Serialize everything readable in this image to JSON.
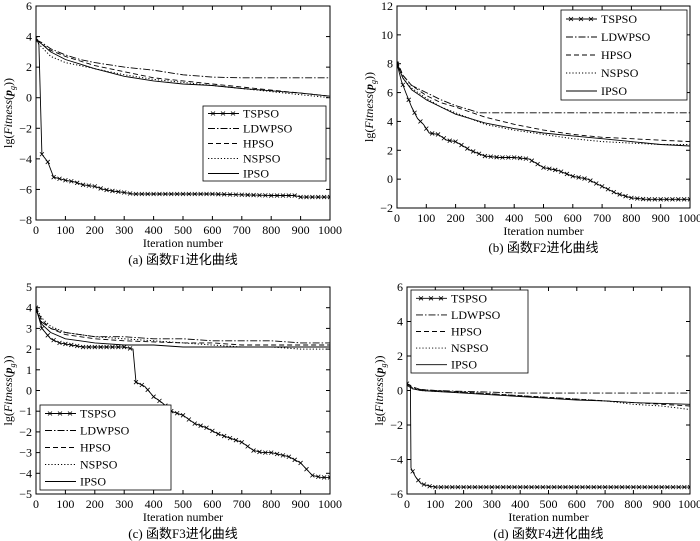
{
  "chart_data": [
    {
      "type": "line",
      "caption": "(a) 函数F1进化曲线",
      "xlabel": "Iteration number",
      "ylabel_prefix": "lg(",
      "ylabel_italic": "Fitness",
      "ylabel_bold": "p",
      "ylabel_sub": "g",
      "ylabel_suffix": "))",
      "xlim": [
        0,
        1000
      ],
      "ylim": [
        -8,
        6
      ],
      "xticks": [
        0,
        100,
        200,
        300,
        400,
        500,
        600,
        700,
        800,
        900,
        1000
      ],
      "yticks": [
        -8,
        -6,
        -4,
        -2,
        0,
        2,
        4,
        6
      ],
      "legend_position": "center-right",
      "series": [
        {
          "name": "TSPSO",
          "style": "solid-x",
          "x": [
            0,
            10,
            20,
            40,
            60,
            80,
            100,
            130,
            160,
            200,
            230,
            260,
            300,
            330,
            400,
            500,
            600,
            700,
            800,
            880,
            900,
            1000
          ],
          "y": [
            3.9,
            3.5,
            -3.7,
            -4.2,
            -5.2,
            -5.3,
            -5.4,
            -5.5,
            -5.7,
            -5.8,
            -6.0,
            -6.1,
            -6.2,
            -6.3,
            -6.3,
            -6.3,
            -6.3,
            -6.35,
            -6.4,
            -6.4,
            -6.5,
            -6.5
          ]
        },
        {
          "name": "LDWPSO",
          "style": "dashdot",
          "x": [
            0,
            20,
            50,
            100,
            150,
            200,
            300,
            400,
            500,
            600,
            700,
            800,
            900,
            1000
          ],
          "y": [
            3.8,
            3.6,
            3.2,
            2.8,
            2.5,
            2.3,
            2.0,
            1.8,
            1.5,
            1.35,
            1.3,
            1.3,
            1.3,
            1.3
          ]
        },
        {
          "name": "HPSO",
          "style": "dashed",
          "x": [
            0,
            20,
            50,
            100,
            150,
            200,
            300,
            400,
            500,
            600,
            700,
            800,
            900,
            1000
          ],
          "y": [
            3.8,
            3.5,
            3.1,
            2.7,
            2.4,
            2.1,
            1.7,
            1.3,
            1.1,
            0.9,
            0.7,
            0.5,
            0.3,
            0.1
          ]
        },
        {
          "name": "NSPSO",
          "style": "dotted",
          "x": [
            0,
            20,
            50,
            100,
            150,
            200,
            300,
            400,
            500,
            600,
            700,
            800,
            900,
            1000
          ],
          "y": [
            3.7,
            3.3,
            2.7,
            2.3,
            2.1,
            1.9,
            1.5,
            1.2,
            1.0,
            0.8,
            0.6,
            0.4,
            0.2,
            0.0
          ]
        },
        {
          "name": "IPSO",
          "style": "solid",
          "x": [
            0,
            20,
            50,
            100,
            150,
            200,
            300,
            400,
            500,
            600,
            700,
            800,
            900,
            1000
          ],
          "y": [
            3.8,
            3.5,
            3.0,
            2.5,
            2.2,
            1.9,
            1.4,
            1.1,
            0.9,
            0.8,
            0.6,
            0.45,
            0.3,
            0.1
          ]
        }
      ]
    },
    {
      "type": "line",
      "caption": "(b) 函数F2进化曲线",
      "xlabel": "Iteration number",
      "ylabel_prefix": "lg(",
      "ylabel_italic": "Fitness",
      "ylabel_bold": "p",
      "ylabel_sub": "g",
      "ylabel_suffix": "))",
      "xlim": [
        0,
        1000
      ],
      "ylim": [
        -2,
        12
      ],
      "xticks": [
        0,
        100,
        200,
        300,
        400,
        500,
        600,
        700,
        800,
        900,
        1000
      ],
      "yticks": [
        -2,
        0,
        2,
        4,
        6,
        8,
        10,
        12
      ],
      "legend_position": "top-right",
      "series": [
        {
          "name": "TSPSO",
          "style": "solid-x",
          "x": [
            0,
            15,
            30,
            50,
            70,
            90,
            110,
            140,
            170,
            200,
            250,
            300,
            350,
            400,
            450,
            500,
            550,
            600,
            650,
            700,
            750,
            800,
            850,
            900,
            950,
            1000
          ],
          "y": [
            8.0,
            6.8,
            6.0,
            5.0,
            4.2,
            3.8,
            3.2,
            3.1,
            2.7,
            2.6,
            2.0,
            1.6,
            1.5,
            1.5,
            1.4,
            0.8,
            0.6,
            0.2,
            0.0,
            -0.5,
            -1.0,
            -1.3,
            -1.4,
            -1.4,
            -1.4,
            -1.4
          ]
        },
        {
          "name": "LDWPSO",
          "style": "dashdot",
          "x": [
            0,
            20,
            50,
            100,
            150,
            200,
            250,
            280,
            400,
            600,
            800,
            1000
          ],
          "y": [
            8.0,
            7.2,
            6.5,
            6.0,
            5.5,
            5.1,
            4.8,
            4.6,
            4.6,
            4.6,
            4.6,
            4.6
          ]
        },
        {
          "name": "HPSO",
          "style": "dashed",
          "x": [
            0,
            20,
            50,
            100,
            150,
            200,
            300,
            400,
            500,
            600,
            700,
            800,
            900,
            1000
          ],
          "y": [
            8.2,
            7.2,
            6.5,
            5.8,
            5.3,
            5.0,
            4.3,
            3.8,
            3.4,
            3.1,
            2.9,
            2.8,
            2.7,
            2.6
          ]
        },
        {
          "name": "NSPSO",
          "style": "dotted",
          "x": [
            0,
            20,
            50,
            100,
            150,
            200,
            300,
            400,
            500,
            600,
            700,
            800,
            900,
            1000
          ],
          "y": [
            8.0,
            7.0,
            6.3,
            5.6,
            5.0,
            4.6,
            3.8,
            3.4,
            3.1,
            2.8,
            2.6,
            2.5,
            2.4,
            2.4
          ]
        },
        {
          "name": "IPSO",
          "style": "solid",
          "x": [
            0,
            20,
            50,
            100,
            150,
            200,
            300,
            400,
            500,
            600,
            700,
            800,
            900,
            1000
          ],
          "y": [
            8.0,
            7.0,
            6.2,
            5.5,
            5.0,
            4.5,
            3.9,
            3.5,
            3.2,
            3.0,
            2.8,
            2.6,
            2.4,
            2.3
          ]
        }
      ]
    },
    {
      "type": "line",
      "caption": "(c) 函数F3进化曲线",
      "xlabel": "Iteration number",
      "ylabel_prefix": "lg(",
      "ylabel_italic": "Fitness",
      "ylabel_bold": "p",
      "ylabel_sub": "g",
      "ylabel_suffix": "))",
      "xlim": [
        0,
        1000
      ],
      "ylim": [
        -5,
        5
      ],
      "xticks": [
        0,
        100,
        200,
        300,
        400,
        500,
        600,
        700,
        800,
        900,
        1000
      ],
      "yticks": [
        -5,
        -4,
        -3,
        -2,
        -1,
        0,
        1,
        2,
        3,
        4,
        5
      ],
      "legend_position": "bottom-left",
      "series": [
        {
          "name": "TSPSO",
          "style": "solid-x",
          "x": [
            0,
            20,
            50,
            80,
            120,
            160,
            200,
            250,
            300,
            330,
            340,
            370,
            400,
            430,
            460,
            500,
            540,
            580,
            620,
            660,
            700,
            740,
            770,
            800,
            860,
            900,
            940,
            970,
            1000
          ],
          "y": [
            4.0,
            3.0,
            2.5,
            2.3,
            2.2,
            2.1,
            2.1,
            2.1,
            2.1,
            2.0,
            0.4,
            0.2,
            -0.3,
            -0.6,
            -1.0,
            -1.2,
            -1.6,
            -1.8,
            -2.1,
            -2.3,
            -2.5,
            -2.9,
            -3.0,
            -3.0,
            -3.2,
            -3.5,
            -4.1,
            -4.2,
            -4.2
          ]
        },
        {
          "name": "LDWPSO",
          "style": "dashdot",
          "x": [
            0,
            20,
            50,
            100,
            150,
            200,
            300,
            400,
            500,
            600,
            700,
            800,
            900,
            1000
          ],
          "y": [
            3.9,
            3.3,
            3.0,
            2.8,
            2.7,
            2.6,
            2.6,
            2.5,
            2.5,
            2.4,
            2.4,
            2.4,
            2.3,
            2.3
          ]
        },
        {
          "name": "HPSO",
          "style": "dashed",
          "x": [
            0,
            20,
            50,
            100,
            150,
            200,
            300,
            400,
            500,
            600,
            700,
            800,
            900,
            1000
          ],
          "y": [
            4.0,
            3.4,
            3.0,
            2.7,
            2.6,
            2.5,
            2.4,
            2.35,
            2.3,
            2.3,
            2.2,
            2.2,
            2.2,
            2.2
          ]
        },
        {
          "name": "NSPSO",
          "style": "dotted",
          "x": [
            0,
            20,
            50,
            100,
            150,
            200,
            300,
            400,
            500,
            600,
            700,
            800,
            900,
            1000
          ],
          "y": [
            4.0,
            3.5,
            3.1,
            2.8,
            2.7,
            2.6,
            2.5,
            2.4,
            2.3,
            2.2,
            2.1,
            2.1,
            2.0,
            2.0
          ]
        },
        {
          "name": "IPSO",
          "style": "solid",
          "x": [
            0,
            20,
            50,
            100,
            150,
            200,
            300,
            400,
            500,
            600,
            700,
            800,
            900,
            1000
          ],
          "y": [
            3.9,
            3.2,
            2.8,
            2.5,
            2.4,
            2.3,
            2.2,
            2.2,
            2.1,
            2.1,
            2.1,
            2.1,
            2.1,
            2.1
          ]
        }
      ]
    },
    {
      "type": "line",
      "caption": "(d) 函数F4进化曲线",
      "xlabel": "Iteration number",
      "ylabel_prefix": "lg(",
      "ylabel_italic": "Fitness",
      "ylabel_bold": "p",
      "ylabel_sub": "g",
      "ylabel_suffix": "))",
      "xlim": [
        0,
        1000
      ],
      "ylim": [
        -6,
        6
      ],
      "xticks": [
        0,
        100,
        200,
        300,
        400,
        500,
        600,
        700,
        800,
        900,
        1000
      ],
      "yticks": [
        -6,
        -4,
        -2,
        0,
        2,
        4,
        6
      ],
      "legend_position": "top-left",
      "series": [
        {
          "name": "TSPSO",
          "style": "solid-x",
          "x": [
            0,
            12,
            14,
            30,
            50,
            80,
            100,
            150,
            200,
            300,
            400,
            500,
            600,
            700,
            800,
            900,
            1000
          ],
          "y": [
            0.4,
            0.3,
            -4.5,
            -5.0,
            -5.4,
            -5.55,
            -5.6,
            -5.6,
            -5.6,
            -5.6,
            -5.6,
            -5.6,
            -5.6,
            -5.6,
            -5.6,
            -5.6,
            -5.6
          ]
        },
        {
          "name": "LDWPSO",
          "style": "dashdot",
          "x": [
            0,
            20,
            50,
            100,
            200,
            300,
            400,
            500,
            600,
            700,
            800,
            900,
            1000
          ],
          "y": [
            0.4,
            0.15,
            0.05,
            0.0,
            -0.05,
            -0.1,
            -0.15,
            -0.15,
            -0.15,
            -0.15,
            -0.15,
            -0.15,
            -0.15
          ]
        },
        {
          "name": "HPSO",
          "style": "dashed",
          "x": [
            0,
            20,
            50,
            100,
            200,
            300,
            400,
            500,
            600,
            700,
            800,
            900,
            1000
          ],
          "y": [
            0.4,
            0.2,
            0.05,
            0.0,
            -0.1,
            -0.2,
            -0.3,
            -0.4,
            -0.5,
            -0.6,
            -0.7,
            -0.8,
            -0.9
          ]
        },
        {
          "name": "NSPSO",
          "style": "dotted",
          "x": [
            0,
            20,
            50,
            100,
            200,
            300,
            400,
            500,
            600,
            700,
            800,
            900,
            1000
          ],
          "y": [
            0.3,
            0.1,
            0.0,
            -0.05,
            -0.1,
            -0.2,
            -0.3,
            -0.4,
            -0.5,
            -0.6,
            -0.8,
            -0.9,
            -1.1
          ]
        },
        {
          "name": "IPSO",
          "style": "solid",
          "x": [
            0,
            20,
            50,
            100,
            200,
            300,
            400,
            500,
            600,
            700,
            800,
            900,
            1000
          ],
          "y": [
            0.3,
            0.1,
            0.0,
            -0.05,
            -0.15,
            -0.25,
            -0.35,
            -0.45,
            -0.55,
            -0.6,
            -0.7,
            -0.75,
            -0.8
          ]
        }
      ]
    }
  ]
}
